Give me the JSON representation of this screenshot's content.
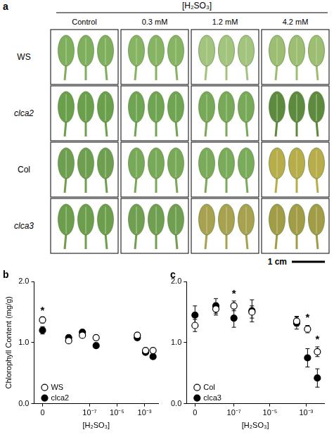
{
  "panel_a": {
    "label": "a",
    "header": "[H₂SO₃]",
    "columns": [
      "Control",
      "0.3 mM",
      "1.2 mM",
      "4.2 mM"
    ],
    "rows": [
      "WS",
      "clca2",
      "Col",
      "clca3"
    ],
    "scale_bar": "1 cm"
  },
  "chart_data": [
    {
      "panel": "b",
      "type": "scatter",
      "x_label": "[H₂SO₃]",
      "y_label": "Chlorophyll Content (mg/g)",
      "x": [
        0,
        3e-09,
        3e-08,
        3e-07,
        0.0003,
        0.0012,
        0.0042
      ],
      "series": [
        {
          "name": "WS",
          "color": "#000000",
          "marker": "open_circle",
          "values": [
            1.37,
            1.03,
            1.12,
            1.08,
            1.12,
            0.87,
            0.87
          ],
          "errors": [
            0.05,
            0.04,
            0.04,
            0.04,
            0.04,
            0.04,
            0.04
          ]
        },
        {
          "name": "clca2",
          "color": "#000000",
          "marker": "circle",
          "values": [
            1.2,
            1.08,
            1.17,
            0.95,
            1.08,
            0.84,
            0.77
          ],
          "errors": [
            0.06,
            0.04,
            0.04,
            0.04,
            0.04,
            0.04,
            0.04
          ]
        }
      ],
      "xlim": [
        0,
        0.01
      ],
      "xticks": [
        0,
        {
          "value": 1e-07,
          "label": "10⁻⁷"
        },
        {
          "value": 1e-05,
          "label": "10⁻⁵"
        },
        {
          "value": 0.001,
          "label": "10⁻³"
        }
      ],
      "ylim": [
        0,
        2
      ],
      "yticks": [
        {
          "value": 0,
          "label": "0.0"
        },
        {
          "value": 1,
          "label": "1.0"
        },
        {
          "value": 2,
          "label": "2.0"
        }
      ],
      "log": "x",
      "grid": false,
      "legend": "lower left",
      "annotations": [
        {
          "text": "*",
          "x": 0,
          "y": 1.52
        }
      ]
    },
    {
      "panel": "c",
      "type": "scatter",
      "x_label": "[H₂SO₃]",
      "x": [
        0,
        1e-08,
        1e-07,
        1e-06,
        0.0003,
        0.0012,
        0.0042
      ],
      "series": [
        {
          "name": "Col",
          "color": "#000000",
          "marker": "open_circle",
          "values": [
            1.28,
            1.55,
            1.6,
            1.5,
            1.35,
            1.22,
            0.85
          ],
          "errors": [
            0.1,
            0.1,
            0.08,
            0.1,
            0.08,
            0.06,
            0.08
          ]
        },
        {
          "name": "clca3",
          "color": "#000000",
          "marker": "circle",
          "values": [
            1.45,
            1.6,
            1.4,
            1.52,
            1.32,
            0.75,
            0.42
          ],
          "errors": [
            0.15,
            0.12,
            0.15,
            0.18,
            0.1,
            0.15,
            0.15
          ]
        }
      ],
      "xlim": [
        0,
        0.01
      ],
      "xticks": [
        0,
        {
          "value": 1e-07,
          "label": "10⁻⁷"
        },
        {
          "value": 1e-05,
          "label": "10⁻⁵"
        },
        {
          "value": 0.001,
          "label": "10⁻³"
        }
      ],
      "ylim": [
        0,
        2
      ],
      "yticks": [
        {
          "value": 0,
          "label": "0.0"
        },
        {
          "value": 1,
          "label": "1.0"
        },
        {
          "value": 2,
          "label": "2.0"
        }
      ],
      "log": "x",
      "grid": false,
      "legend": "lower left",
      "annotations": [
        {
          "text": "*",
          "x": 1e-07,
          "y": 1.8
        },
        {
          "text": "*",
          "x": 0.0012,
          "y": 1.4
        },
        {
          "text": "*",
          "x": 0.0042,
          "y": 1.05
        }
      ]
    }
  ]
}
